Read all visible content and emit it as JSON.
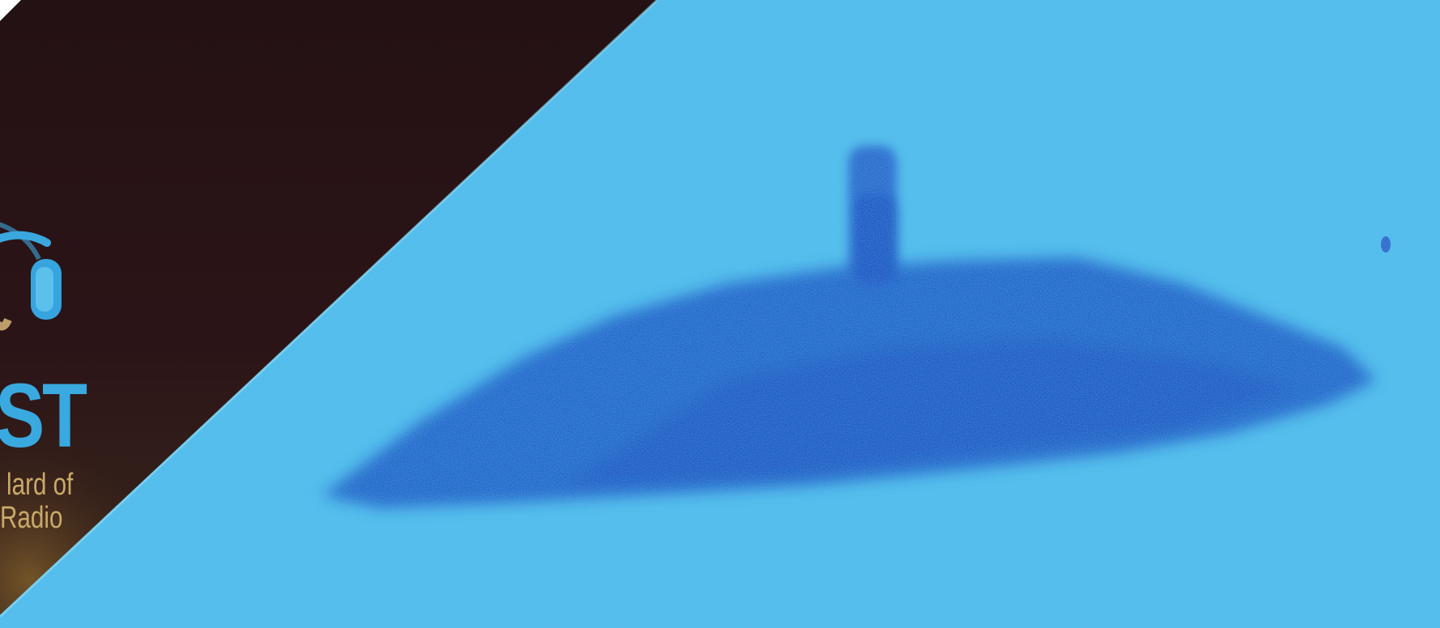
{
  "logo": {
    "wordmark_fragment": "ST",
    "tagline_line1": "lard of",
    "tagline_line2": "Radio",
    "icon": "headphones-icon"
  },
  "colors": {
    "sonar_background": "#3fb6e8",
    "sonar_light": "#6fd3f2",
    "object_shadow": "#1d5fc4",
    "left_panel": "#2a1418",
    "logo_blue": "#39a9e0",
    "logo_gold": "#c9a96a"
  }
}
